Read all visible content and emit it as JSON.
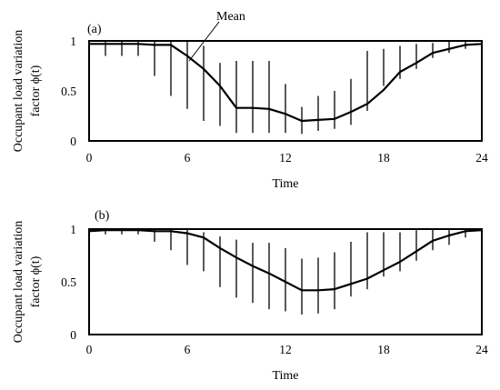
{
  "chart_data": [
    {
      "type": "line",
      "panel_label": "(a)",
      "xlabel": "Time",
      "ylabel_line1": "Occupant load variation",
      "ylabel_line2": "factor ϕ(t)",
      "xlim": [
        0,
        24
      ],
      "ylim": [
        0,
        1
      ],
      "xticks": [
        0,
        6,
        12,
        18,
        24
      ],
      "yticks": [
        0,
        0.5,
        1
      ],
      "ytick_labels": [
        "0",
        "0.5",
        "1"
      ],
      "annotation": {
        "text": "Mean",
        "x": 6.2,
        "y": 0.78
      },
      "series": [
        {
          "name": "Mean",
          "x": [
            0,
            1,
            2,
            3,
            4,
            5,
            6,
            7,
            8,
            9,
            10,
            11,
            12,
            13,
            14,
            15,
            16,
            17,
            18,
            19,
            20,
            21,
            22,
            23,
            24
          ],
          "values": [
            0.97,
            0.97,
            0.97,
            0.97,
            0.96,
            0.96,
            0.85,
            0.72,
            0.55,
            0.33,
            0.33,
            0.32,
            0.27,
            0.2,
            0.21,
            0.22,
            0.29,
            0.37,
            0.51,
            0.69,
            0.78,
            0.88,
            0.92,
            0.96,
            0.97
          ]
        }
      ],
      "range_bars": {
        "x": [
          1,
          2,
          3,
          4,
          5,
          6,
          7,
          8,
          9,
          10,
          11,
          12,
          13,
          14,
          15,
          16,
          17,
          18,
          19,
          20,
          21,
          22,
          23
        ],
        "low": [
          0.85,
          0.85,
          0.85,
          0.65,
          0.45,
          0.32,
          0.2,
          0.15,
          0.08,
          0.08,
          0.08,
          0.08,
          0.07,
          0.1,
          0.12,
          0.16,
          0.3,
          0.55,
          0.62,
          0.72,
          0.83,
          0.88,
          0.92
        ],
        "high": [
          1,
          1,
          1,
          1,
          1,
          1,
          0.95,
          0.78,
          0.8,
          0.8,
          0.8,
          0.57,
          0.34,
          0.45,
          0.5,
          0.62,
          0.9,
          0.92,
          0.95,
          0.97,
          0.98,
          1,
          1
        ]
      }
    },
    {
      "type": "line",
      "panel_label": "(b)",
      "xlabel": "Time",
      "ylabel_line1": "Occupant load variation",
      "ylabel_line2": "factor ϕ(t)",
      "xlim": [
        0,
        24
      ],
      "ylim": [
        0,
        1
      ],
      "xticks": [
        0,
        6,
        12,
        18,
        24
      ],
      "yticks": [
        0,
        0.5,
        1
      ],
      "ytick_labels": [
        "0",
        "0.5",
        "1"
      ],
      "series": [
        {
          "name": "Mean",
          "x": [
            0,
            1,
            2,
            3,
            4,
            5,
            6,
            7,
            8,
            9,
            10,
            11,
            12,
            13,
            14,
            15,
            16,
            17,
            18,
            19,
            20,
            21,
            22,
            23,
            24
          ],
          "values": [
            0.98,
            0.99,
            0.99,
            0.99,
            0.98,
            0.98,
            0.96,
            0.92,
            0.82,
            0.73,
            0.65,
            0.58,
            0.5,
            0.42,
            0.42,
            0.43,
            0.48,
            0.53,
            0.61,
            0.69,
            0.79,
            0.89,
            0.94,
            0.98,
            0.99
          ]
        }
      ],
      "range_bars": {
        "x": [
          1,
          2,
          3,
          4,
          5,
          6,
          7,
          8,
          9,
          10,
          11,
          12,
          13,
          14,
          15,
          16,
          17,
          18,
          19,
          20,
          21,
          22,
          23
        ],
        "low": [
          0.95,
          0.95,
          0.95,
          0.88,
          0.8,
          0.66,
          0.6,
          0.45,
          0.35,
          0.3,
          0.24,
          0.22,
          0.19,
          0.2,
          0.24,
          0.36,
          0.43,
          0.55,
          0.6,
          0.7,
          0.8,
          0.85,
          0.92
        ],
        "high": [
          1,
          1,
          1,
          1,
          1,
          1,
          0.97,
          0.93,
          0.9,
          0.87,
          0.87,
          0.82,
          0.72,
          0.73,
          0.78,
          0.88,
          0.97,
          0.97,
          0.97,
          0.99,
          1,
          1,
          1
        ]
      }
    }
  ]
}
